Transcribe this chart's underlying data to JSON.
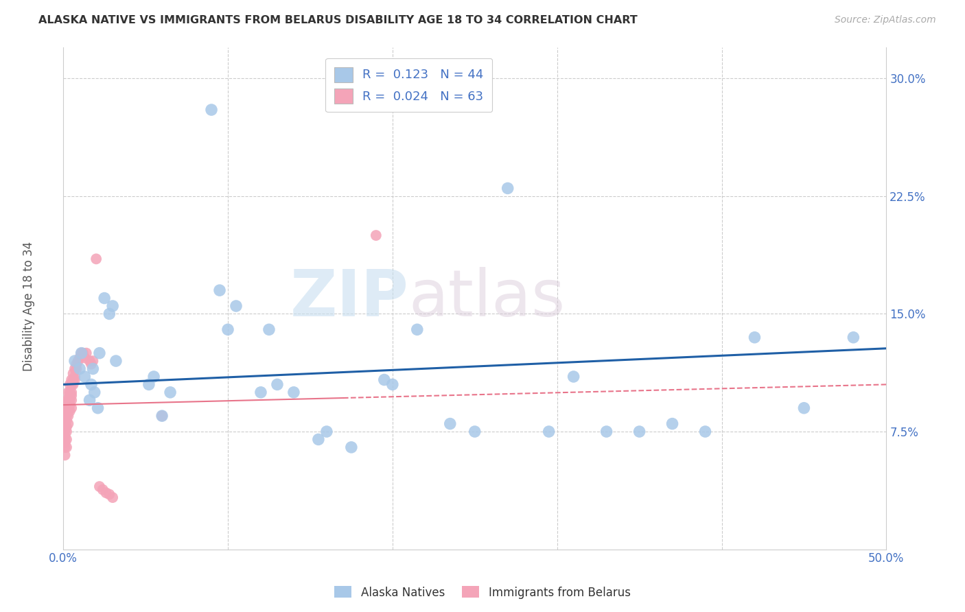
{
  "title": "ALASKA NATIVE VS IMMIGRANTS FROM BELARUS DISABILITY AGE 18 TO 34 CORRELATION CHART",
  "source": "Source: ZipAtlas.com",
  "ylabel": "Disability Age 18 to 34",
  "xlim": [
    0.0,
    0.5
  ],
  "ylim": [
    0.0,
    0.32
  ],
  "xticks": [
    0.0,
    0.1,
    0.2,
    0.3,
    0.4,
    0.5
  ],
  "xticklabels": [
    "0.0%",
    "",
    "",
    "",
    "",
    "50.0%"
  ],
  "yticks": [
    0.075,
    0.15,
    0.225,
    0.3
  ],
  "yticklabels": [
    "7.5%",
    "15.0%",
    "22.5%",
    "30.0%"
  ],
  "grid_color": "#cccccc",
  "watermark_zip": "ZIP",
  "watermark_atlas": "atlas",
  "blue_color": "#A8C8E8",
  "pink_color": "#F4A4B8",
  "blue_line_color": "#1F5FA6",
  "pink_line_color": "#E8748A",
  "pink_line_dash_color": "#E8748A",
  "alaska_natives_x": [
    0.007,
    0.01,
    0.011,
    0.013,
    0.016,
    0.017,
    0.018,
    0.019,
    0.021,
    0.022,
    0.025,
    0.028,
    0.03,
    0.032,
    0.052,
    0.055,
    0.06,
    0.065,
    0.09,
    0.095,
    0.1,
    0.105,
    0.12,
    0.125,
    0.13,
    0.14,
    0.155,
    0.16,
    0.175,
    0.195,
    0.2,
    0.215,
    0.235,
    0.25,
    0.27,
    0.295,
    0.31,
    0.33,
    0.35,
    0.37,
    0.39,
    0.42,
    0.45,
    0.48
  ],
  "alaska_natives_y": [
    0.12,
    0.115,
    0.125,
    0.11,
    0.095,
    0.105,
    0.115,
    0.1,
    0.09,
    0.125,
    0.16,
    0.15,
    0.155,
    0.12,
    0.105,
    0.11,
    0.085,
    0.1,
    0.28,
    0.165,
    0.14,
    0.155,
    0.1,
    0.14,
    0.105,
    0.1,
    0.07,
    0.075,
    0.065,
    0.108,
    0.105,
    0.14,
    0.08,
    0.075,
    0.23,
    0.075,
    0.11,
    0.075,
    0.075,
    0.08,
    0.075,
    0.135,
    0.09,
    0.135
  ],
  "belarus_x": [
    0.001,
    0.001,
    0.001,
    0.001,
    0.001,
    0.001,
    0.001,
    0.001,
    0.001,
    0.001,
    0.002,
    0.002,
    0.002,
    0.002,
    0.002,
    0.002,
    0.002,
    0.002,
    0.002,
    0.003,
    0.003,
    0.003,
    0.003,
    0.003,
    0.003,
    0.003,
    0.004,
    0.004,
    0.004,
    0.004,
    0.004,
    0.004,
    0.005,
    0.005,
    0.005,
    0.005,
    0.005,
    0.005,
    0.006,
    0.006,
    0.006,
    0.007,
    0.007,
    0.007,
    0.008,
    0.008,
    0.009,
    0.01,
    0.011,
    0.012,
    0.013,
    0.014,
    0.016,
    0.017,
    0.018,
    0.02,
    0.022,
    0.024,
    0.026,
    0.028,
    0.03,
    0.06,
    0.19
  ],
  "belarus_y": [
    0.09,
    0.085,
    0.08,
    0.078,
    0.075,
    0.072,
    0.07,
    0.068,
    0.065,
    0.06,
    0.095,
    0.09,
    0.088,
    0.085,
    0.082,
    0.078,
    0.075,
    0.07,
    0.065,
    0.1,
    0.095,
    0.092,
    0.09,
    0.088,
    0.085,
    0.08,
    0.105,
    0.1,
    0.098,
    0.095,
    0.092,
    0.088,
    0.108,
    0.105,
    0.1,
    0.098,
    0.095,
    0.09,
    0.112,
    0.108,
    0.105,
    0.115,
    0.11,
    0.108,
    0.118,
    0.115,
    0.12,
    0.122,
    0.125,
    0.125,
    0.122,
    0.125,
    0.12,
    0.118,
    0.12,
    0.185,
    0.04,
    0.038,
    0.036,
    0.035,
    0.033,
    0.085,
    0.2
  ]
}
